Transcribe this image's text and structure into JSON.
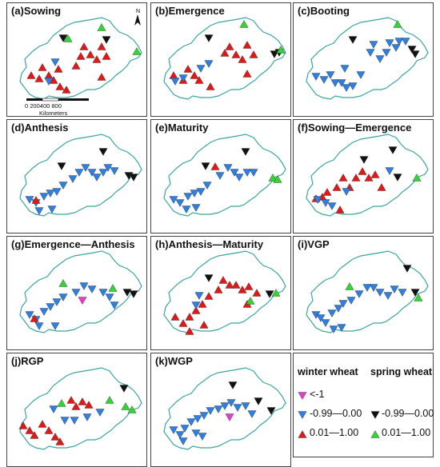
{
  "panels": [
    {
      "id": "a",
      "title": "(a)Sowing",
      "symbols": [
        "RU",
        "RU",
        "RU",
        "RU",
        "RU",
        "RU",
        "RU",
        "RU",
        "RU",
        "RU",
        "RU",
        "RU",
        "RU",
        "RU",
        "RU",
        "RU",
        "BD",
        "BD",
        "KD",
        "KD",
        "GU",
        "GU",
        "GU"
      ]
    },
    {
      "id": "b",
      "title": "(b)Emergence",
      "symbols": [
        "RU",
        "RU",
        "RU",
        "RU",
        "RU",
        "RU",
        "RU",
        "RU",
        "RU",
        "RU",
        "RU",
        "RU",
        "RU",
        "BD",
        "BD",
        "BD",
        "BD",
        "KD",
        "KD",
        "KD",
        "GU",
        "GU"
      ]
    },
    {
      "id": "c",
      "title": "(c)Booting",
      "symbols": [
        "BD",
        "BD",
        "BD",
        "BD",
        "BD",
        "BD",
        "BD",
        "BD",
        "BD",
        "BD",
        "BD",
        "BD",
        "BD",
        "BD",
        "BD",
        "BD",
        "BD",
        "KD",
        "KD",
        "KD",
        "GU"
      ]
    },
    {
      "id": "d",
      "title": "(d)Anthesis",
      "symbols": [
        "BD",
        "BD",
        "BD",
        "BD",
        "BD",
        "BD",
        "BD",
        "BD",
        "BD",
        "BD",
        "BD",
        "BD",
        "BD",
        "BD",
        "BD",
        "BD",
        "RU",
        "KD",
        "KD",
        "KD",
        "KD"
      ]
    },
    {
      "id": "e",
      "title": "(e)Maturity",
      "symbols": [
        "BD",
        "BD",
        "BD",
        "BD",
        "BD",
        "BD",
        "BD",
        "BD",
        "BD",
        "BD",
        "BD",
        "BD",
        "BD",
        "BD",
        "RU",
        "KD",
        "KD",
        "GU",
        "GU"
      ]
    },
    {
      "id": "f",
      "title": "(f)Sowing—Emergence",
      "symbols": [
        "RU",
        "RU",
        "RU",
        "RU",
        "RU",
        "RU",
        "RU",
        "RU",
        "RU",
        "RU",
        "RU",
        "RU",
        "BD",
        "BD",
        "BD",
        "BD",
        "BD",
        "KD",
        "KD",
        "KD",
        "GU"
      ]
    },
    {
      "id": "g",
      "title": "(g)Emergence—Anthesis",
      "symbols": [
        "BD",
        "BD",
        "BD",
        "BD",
        "BD",
        "BD",
        "BD",
        "BD",
        "BD",
        "BD",
        "BD",
        "BD",
        "BD",
        "BD",
        "MD",
        "RU",
        "GU",
        "GU",
        "KD",
        "KD"
      ]
    },
    {
      "id": "h",
      "title": "(h)Anthesis—Maturity",
      "symbols": [
        "RU",
        "RU",
        "RU",
        "RU",
        "RU",
        "RU",
        "RU",
        "RU",
        "RU",
        "RU",
        "RU",
        "RU",
        "RU",
        "RU",
        "RU",
        "RU",
        "BD",
        "BD",
        "KD",
        "KD",
        "GU",
        "GU"
      ]
    },
    {
      "id": "i",
      "title": "(i)VGP",
      "symbols": [
        "BD",
        "BD",
        "BD",
        "BD",
        "BD",
        "BD",
        "BD",
        "BD",
        "BD",
        "BD",
        "BD",
        "BD",
        "BD",
        "BD",
        "BD",
        "BD",
        "GU",
        "KD",
        "KD",
        "GU"
      ]
    },
    {
      "id": "j",
      "title": "(j)RGP",
      "symbols": [
        "RU",
        "RU",
        "RU",
        "RU",
        "RU",
        "RU",
        "RU",
        "RU",
        "RU",
        "RU",
        "RU",
        "BD",
        "BD",
        "BD",
        "BD",
        "BD",
        "GU",
        "GU",
        "GU",
        "KD",
        "GU"
      ]
    },
    {
      "id": "k",
      "title": "(k)WGP",
      "symbols": [
        "BD",
        "BD",
        "BD",
        "BD",
        "BD",
        "BD",
        "BD",
        "BD",
        "BD",
        "BD",
        "BD",
        "BD",
        "BD",
        "BD",
        "BD",
        "MD",
        "KD",
        "KD",
        "KD",
        "BD"
      ]
    }
  ],
  "scalebar": {
    "ticks": "0  200400       800",
    "unit": "Kilometers"
  },
  "north_label": "N",
  "legend": {
    "winter_header": "winter wheat",
    "spring_header": "spring wheat",
    "items": [
      {
        "label": "<-1",
        "symbol": "MD"
      },
      {
        "label": "-0.99—0.00",
        "symbol": "BD"
      },
      {
        "label": "0.01—1.00",
        "symbol": "RU"
      },
      {
        "label": "-0.99—0.00",
        "symbol": "KD"
      },
      {
        "label": "0.01—1.00",
        "symbol": "GU"
      }
    ]
  },
  "symbol_colors": {
    "MD": "#e040c8",
    "BD": "#2f7fe0",
    "RU": "#e01818",
    "KD": "#111111",
    "GU": "#35d435"
  },
  "outline_color": "#3aa6a0"
}
